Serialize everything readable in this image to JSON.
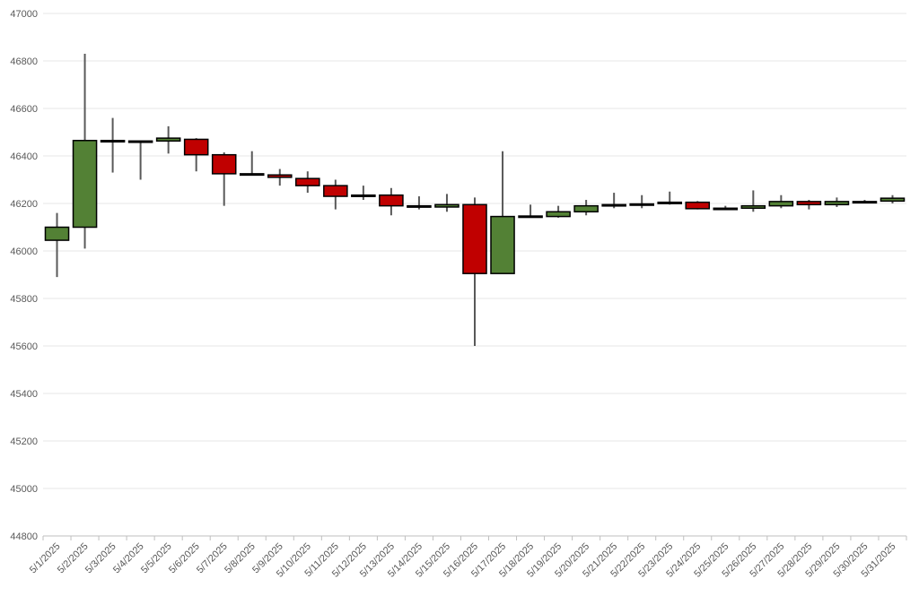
{
  "chart_data": {
    "type": "candlestick",
    "title": "",
    "xlabel": "",
    "ylabel": "",
    "ylim": [
      44800,
      47000
    ],
    "yticks": [
      44800,
      45000,
      45200,
      45400,
      45600,
      45800,
      46000,
      46200,
      46400,
      46600,
      46800,
      47000
    ],
    "grid": true,
    "legend": "none",
    "colors": {
      "up": "#538135",
      "down": "#C00000",
      "wick": "#595959",
      "gridline": "#E7E7E7",
      "axis": "#BFBFBF",
      "label": "#595959"
    },
    "categories": [
      "5/1/2025",
      "5/2/2025",
      "5/3/2025",
      "5/4/2025",
      "5/5/2025",
      "5/6/2025",
      "5/7/2025",
      "5/8/2025",
      "5/9/2025",
      "5/10/2025",
      "5/11/2025",
      "5/12/2025",
      "5/13/2025",
      "5/14/2025",
      "5/15/2025",
      "5/16/2025",
      "5/17/2025",
      "5/18/2025",
      "5/19/2025",
      "5/20/2025",
      "5/21/2025",
      "5/22/2025",
      "5/23/2025",
      "5/24/2025",
      "5/25/2025",
      "5/26/2025",
      "5/27/2025",
      "5/28/2025",
      "5/29/2025",
      "5/30/2025",
      "5/31/2025"
    ],
    "open": [
      46045,
      46100,
      46465,
      46463,
      46463,
      46470,
      46405,
      46325,
      46320,
      46305,
      46275,
      46235,
      46235,
      46190,
      46185,
      46195,
      45905,
      46145,
      46145,
      46165,
      46190,
      46195,
      46200,
      46205,
      46180,
      46180,
      46190,
      46208,
      46195,
      46205,
      46210
    ],
    "high": [
      46160,
      46830,
      46560,
      46463,
      46525,
      46475,
      46415,
      46420,
      46345,
      46335,
      46300,
      46275,
      46265,
      46230,
      46240,
      46225,
      46420,
      46195,
      46190,
      46215,
      46245,
      46235,
      46250,
      46210,
      46190,
      46255,
      46235,
      46215,
      46225,
      46215,
      46235
    ],
    "low": [
      45890,
      46010,
      46330,
      46300,
      46410,
      46335,
      46190,
      46320,
      46275,
      46245,
      46175,
      46215,
      46150,
      46175,
      46165,
      45600,
      45905,
      46140,
      46140,
      46150,
      46180,
      46180,
      46195,
      46175,
      46175,
      46165,
      46180,
      46175,
      46185,
      46200,
      46200
    ],
    "close": [
      46100,
      46465,
      46465,
      46461,
      46475,
      46405,
      46325,
      46323,
      46310,
      46275,
      46230,
      46232,
      46190,
      46185,
      46195,
      45905,
      46145,
      46147,
      46165,
      46190,
      46195,
      46198,
      46205,
      46178,
      46180,
      46190,
      46208,
      46195,
      46208,
      46208,
      46222
    ]
  }
}
